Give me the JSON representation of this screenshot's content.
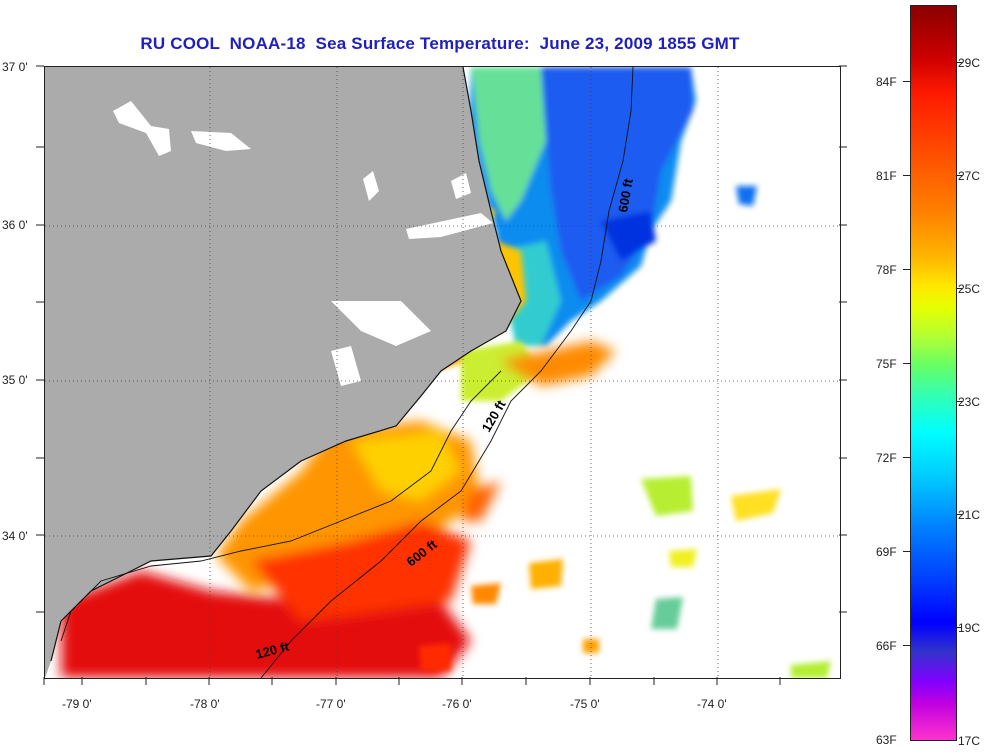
{
  "title": "RU COOL  NOAA-18  Sea Surface Temperature:  June 23, 2009 1855 GMT",
  "latitude_labels": [
    "37 0'",
    "36 0'",
    "35 0'",
    "34 0'"
  ],
  "longitude_labels": [
    "-79 0'",
    "-78 0'",
    "-77 0'",
    "-76 0'",
    "-75 0'",
    "-74 0'"
  ],
  "contour_labels": {
    "c600_north": "600 ft",
    "c120_mid": "120 ft",
    "c600_south": "600 ft",
    "c120_south": "120 ft"
  },
  "colorbar": {
    "fahrenheit": [
      "84F",
      "81F",
      "78F",
      "75F",
      "72F",
      "69F",
      "66F",
      "63F"
    ],
    "celsius": [
      "29C",
      "27C",
      "25C",
      "23C",
      "21C",
      "19C",
      "17C"
    ]
  },
  "colors": {
    "land": "#ababab",
    "water_no_data": "#ffffff",
    "title": "#1f1fbf"
  }
}
